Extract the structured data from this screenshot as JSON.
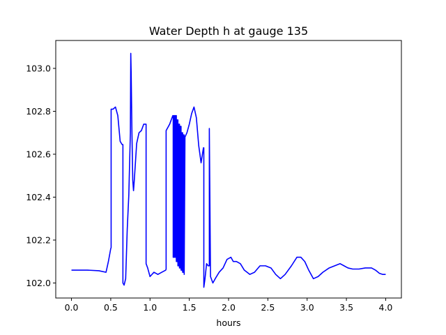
{
  "chart_data": {
    "type": "line",
    "title": "Water Depth h at gauge 135",
    "xlabel": "hours",
    "ylabel": "",
    "xlim": [
      -0.2,
      4.2
    ],
    "ylim": [
      101.93,
      103.13
    ],
    "x_ticks": [
      0.0,
      0.5,
      1.0,
      1.5,
      2.0,
      2.5,
      3.0,
      3.5,
      4.0
    ],
    "x_tick_labels": [
      "0.0",
      "0.5",
      "1.0",
      "1.5",
      "2.0",
      "2.5",
      "3.0",
      "3.5",
      "4.0"
    ],
    "y_ticks": [
      102.0,
      102.2,
      102.4,
      102.6,
      102.8,
      103.0
    ],
    "y_tick_labels": [
      "102.0",
      "102.2",
      "102.4",
      "102.6",
      "102.8",
      "103.0"
    ],
    "grid": false,
    "series": [
      {
        "color": "#0000ff",
        "x": [
          0.0,
          0.2,
          0.35,
          0.44,
          0.47,
          0.5,
          0.505,
          0.505,
          0.53,
          0.56,
          0.59,
          0.62,
          0.645,
          0.655,
          0.655,
          0.67,
          0.69,
          0.71,
          0.73,
          0.75,
          0.755,
          0.76,
          0.77,
          0.78,
          0.79,
          0.8,
          0.83,
          0.86,
          0.89,
          0.92,
          0.945,
          0.95,
          0.95,
          0.97,
          1.0,
          1.05,
          1.1,
          1.15,
          1.2,
          1.205,
          1.205,
          1.25,
          1.29,
          1.295,
          1.295,
          1.305,
          1.305,
          1.315,
          1.315,
          1.325,
          1.325,
          1.335,
          1.335,
          1.345,
          1.345,
          1.355,
          1.355,
          1.365,
          1.365,
          1.375,
          1.375,
          1.385,
          1.385,
          1.395,
          1.395,
          1.405,
          1.405,
          1.415,
          1.415,
          1.425,
          1.425,
          1.435,
          1.435,
          1.445,
          1.47,
          1.5,
          1.53,
          1.56,
          1.59,
          1.62,
          1.65,
          1.68,
          1.685,
          1.685,
          1.7,
          1.72,
          1.74,
          1.755,
          1.755,
          1.77,
          1.8,
          1.83,
          1.88,
          1.93,
          1.98,
          2.03,
          2.06,
          2.1,
          2.15,
          2.2,
          2.27,
          2.33,
          2.4,
          2.47,
          2.54,
          2.6,
          2.66,
          2.72,
          2.8,
          2.87,
          2.92,
          2.97,
          3.02,
          3.08,
          3.14,
          3.2,
          3.28,
          3.35,
          3.42,
          3.47,
          3.52,
          3.58,
          3.66,
          3.74,
          3.82,
          3.87,
          3.92,
          3.96,
          4.0
        ],
        "y": [
          102.06,
          102.06,
          102.057,
          102.05,
          102.1,
          102.16,
          102.165,
          102.81,
          102.81,
          102.82,
          102.78,
          102.66,
          102.645,
          102.645,
          102.0,
          101.99,
          102.02,
          102.25,
          102.41,
          102.7,
          103.07,
          102.98,
          102.7,
          102.48,
          102.43,
          102.48,
          102.65,
          102.7,
          102.71,
          102.74,
          102.74,
          102.74,
          102.09,
          102.07,
          102.03,
          102.05,
          102.04,
          102.05,
          102.06,
          102.065,
          102.71,
          102.74,
          102.78,
          102.78,
          102.12,
          102.12,
          102.78,
          102.78,
          102.12,
          102.12,
          102.78,
          102.78,
          102.1,
          102.1,
          102.76,
          102.76,
          102.08,
          102.08,
          102.74,
          102.74,
          102.07,
          102.07,
          102.73,
          102.73,
          102.06,
          102.06,
          102.7,
          102.7,
          102.05,
          102.05,
          102.69,
          102.69,
          102.04,
          102.68,
          102.7,
          102.74,
          102.79,
          102.82,
          102.77,
          102.64,
          102.56,
          102.63,
          102.63,
          101.98,
          102.02,
          102.09,
          102.08,
          102.08,
          102.72,
          102.03,
          102.0,
          102.02,
          102.05,
          102.07,
          102.11,
          102.12,
          102.1,
          102.1,
          102.09,
          102.06,
          102.04,
          102.05,
          102.08,
          102.08,
          102.07,
          102.04,
          102.02,
          102.04,
          102.08,
          102.12,
          102.12,
          102.1,
          102.06,
          102.02,
          102.03,
          102.05,
          102.07,
          102.08,
          102.09,
          102.08,
          102.07,
          102.065,
          102.065,
          102.07,
          102.07,
          102.06,
          102.045,
          102.04,
          102.04
        ]
      }
    ]
  }
}
